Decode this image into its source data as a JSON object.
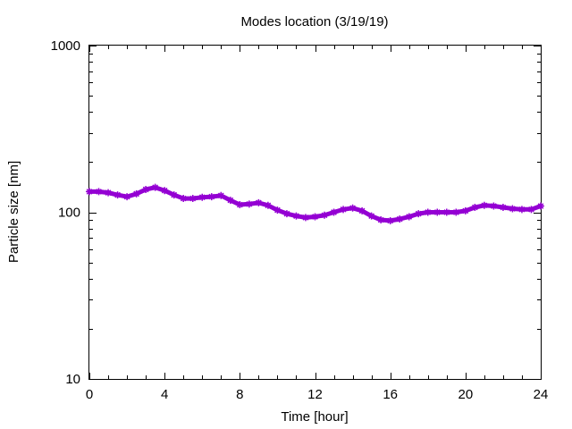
{
  "chart_data": {
    "type": "line",
    "title": "Modes location (3/19/19)",
    "xlabel": "Time [hour]",
    "ylabel": "Particle size [nm]",
    "xlim": [
      0,
      24
    ],
    "ylim": [
      10,
      1000
    ],
    "yscale": "log",
    "grid": false,
    "legend": "none",
    "x_ticks": [
      0,
      4,
      8,
      12,
      16,
      20,
      24
    ],
    "x_tick_labels": [
      "0",
      "4",
      "8",
      "12",
      "16",
      "20",
      "24"
    ],
    "y_ticks": [
      10,
      100,
      1000
    ],
    "y_tick_labels": [
      "10",
      "100",
      "1000"
    ],
    "series": [
      {
        "color": "#9400d3",
        "marker": "star",
        "x": [
          0,
          0.5,
          1,
          1.5,
          2,
          2.5,
          3,
          3.5,
          4,
          4.5,
          5,
          5.5,
          6,
          6.5,
          7,
          7.5,
          8,
          8.5,
          9,
          9.5,
          10,
          10.5,
          11,
          11.5,
          12,
          12.5,
          13,
          13.5,
          14,
          14.5,
          15,
          15.5,
          16,
          16.5,
          17,
          17.5,
          18,
          18.5,
          19,
          19.5,
          20,
          20.5,
          21,
          21.5,
          22,
          22.5,
          23,
          23.5,
          24
        ],
        "y": [
          133,
          133,
          131,
          127,
          124,
          129,
          137,
          141,
          135,
          127,
          121,
          121,
          123,
          124,
          126,
          118,
          111,
          112,
          114,
          110,
          103,
          98,
          95,
          93,
          94,
          96,
          100,
          104,
          106,
          102,
          95,
          90,
          89,
          91,
          94,
          98,
          100,
          100,
          100,
          100,
          102,
          107,
          110,
          109,
          107,
          105,
          104,
          104,
          109
        ]
      }
    ]
  }
}
